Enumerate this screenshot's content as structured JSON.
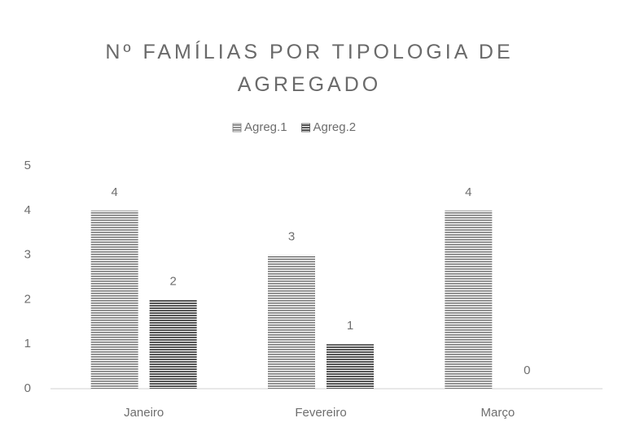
{
  "chart_data": {
    "type": "bar",
    "title": "Nº FAMÍLIAS POR TIPOLOGIA DE AGREGADO",
    "categories": [
      "Janeiro",
      "Fevereiro",
      "Março"
    ],
    "series": [
      {
        "name": "Agreg.1",
        "color": "#7a7a7a",
        "values": [
          4,
          3,
          4
        ]
      },
      {
        "name": "Agreg.2",
        "color": "#555555",
        "values": [
          2,
          1,
          0
        ]
      }
    ],
    "ylim": [
      0,
      5
    ],
    "yticks": [
      0,
      1,
      2,
      3,
      4,
      5
    ],
    "grid": false,
    "legend": "top"
  }
}
